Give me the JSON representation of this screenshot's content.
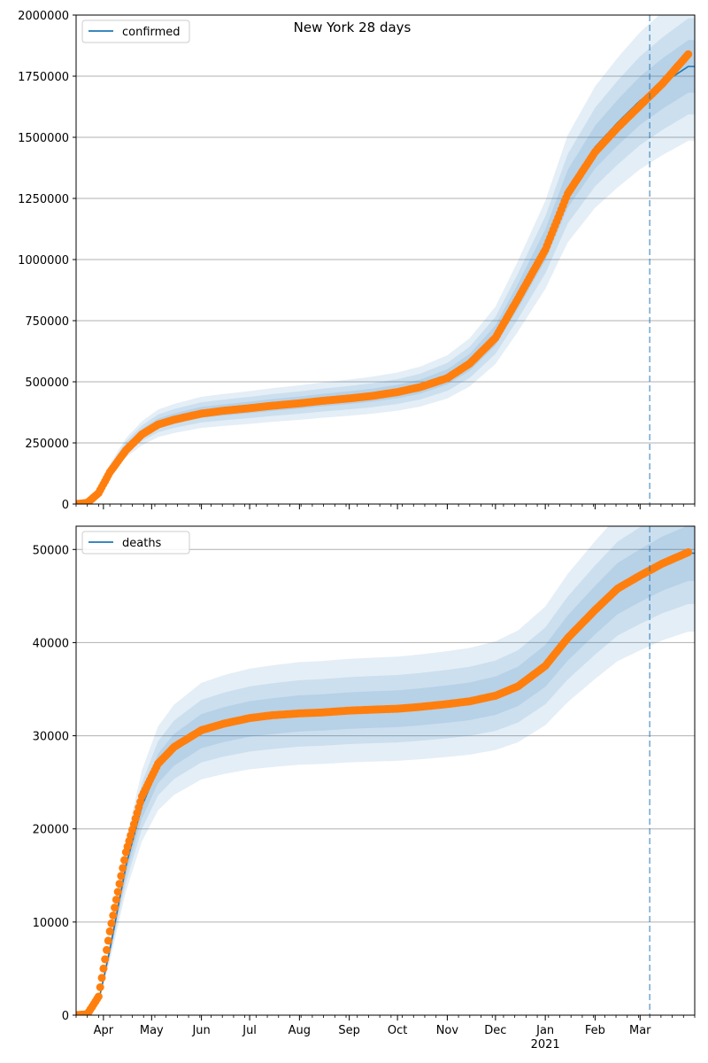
{
  "title": "New York 28 days",
  "colors": {
    "fit_line": "#1f77b4",
    "band": "#1f77b4",
    "observed": "#ff7f0e",
    "grid": "#b0b0b0",
    "forecast_marker": "#1f77b4"
  },
  "x_axis": {
    "month_labels": [
      "Apr",
      "May",
      "Jun",
      "Jul",
      "Aug",
      "Sep",
      "Oct",
      "Nov",
      "Dec",
      "Jan",
      "Feb",
      "Mar"
    ],
    "month_days": [
      17,
      47,
      78,
      108,
      139,
      170,
      200,
      231,
      261,
      292,
      323,
      351
    ],
    "year_label": "2021",
    "range_days": [
      0,
      385
    ],
    "forecast_start_day": 357,
    "date_origin": "2020-03-15"
  },
  "chart_data": [
    {
      "type": "line",
      "title": "New York 28 days",
      "legend": [
        "confirmed"
      ],
      "legend_position": "top-left",
      "grid": "horizontal",
      "ylim": [
        0,
        2000000
      ],
      "yticks": [
        0,
        250000,
        500000,
        750000,
        1000000,
        1250000,
        1500000,
        1750000,
        2000000
      ],
      "ytick_labels": [
        "0",
        "250000",
        "500000",
        "750000",
        "1000000",
        "1250000",
        "1500000",
        "1750000",
        "2000000"
      ],
      "xlabel": "",
      "ylabel": "",
      "forecast_marker_date": "2021-03-07",
      "series": [
        {
          "name": "confirmed",
          "kind": "fit",
          "x": [
            "2020-03-01",
            "2020-03-15",
            "2020-03-22",
            "2020-03-29",
            "2020-04-05",
            "2020-04-15",
            "2020-04-25",
            "2020-05-05",
            "2020-05-15",
            "2020-06-01",
            "2020-06-15",
            "2020-07-01",
            "2020-07-15",
            "2020-08-01",
            "2020-08-15",
            "2020-09-01",
            "2020-09-15",
            "2020-10-01",
            "2020-10-15",
            "2020-11-01",
            "2020-11-15",
            "2020-12-01",
            "2020-12-15",
            "2021-01-01",
            "2021-01-15",
            "2021-02-01",
            "2021-02-15",
            "2021-03-01",
            "2021-03-15",
            "2021-03-31"
          ],
          "y": [
            0,
            0,
            5000,
            45000,
            140000,
            230000,
            290000,
            330000,
            350000,
            375000,
            385000,
            395000,
            405000,
            415000,
            425000,
            435000,
            445000,
            460000,
            480000,
            520000,
            580000,
            690000,
            850000,
            1060000,
            1290000,
            1460000,
            1560000,
            1650000,
            1720000,
            1790000
          ],
          "band_halfwidth_ratio": [
            0.06,
            0.11,
            0.17
          ]
        },
        {
          "name": "observed",
          "kind": "points",
          "x": [
            "2020-03-01",
            "2020-03-15",
            "2020-03-22",
            "2020-03-29",
            "2020-04-05",
            "2020-04-15",
            "2020-04-25",
            "2020-05-05",
            "2020-05-15",
            "2020-06-01",
            "2020-06-15",
            "2020-07-01",
            "2020-07-15",
            "2020-08-01",
            "2020-08-15",
            "2020-09-01",
            "2020-09-15",
            "2020-10-01",
            "2020-10-15",
            "2020-11-01",
            "2020-11-15",
            "2020-12-01",
            "2020-12-15",
            "2021-01-01",
            "2021-01-15",
            "2021-02-01",
            "2021-02-15",
            "2021-03-01",
            "2021-03-15",
            "2021-03-31"
          ],
          "y": [
            0,
            0,
            5000,
            45000,
            130000,
            220000,
            285000,
            325000,
            345000,
            370000,
            382000,
            392000,
            402000,
            412000,
            422000,
            432000,
            442000,
            458000,
            478000,
            515000,
            575000,
            680000,
            840000,
            1040000,
            1270000,
            1440000,
            1540000,
            1630000,
            1720000,
            1840000
          ]
        }
      ]
    },
    {
      "type": "line",
      "title": "",
      "legend": [
        "deaths"
      ],
      "legend_position": "top-left",
      "grid": "horizontal",
      "ylim": [
        0,
        52500
      ],
      "yticks": [
        0,
        10000,
        20000,
        30000,
        40000,
        50000
      ],
      "ytick_labels": [
        "0",
        "10000",
        "20000",
        "30000",
        "40000",
        "50000"
      ],
      "xlabel": "",
      "ylabel": "",
      "forecast_marker_date": "2021-03-07",
      "series": [
        {
          "name": "deaths",
          "kind": "fit",
          "x": [
            "2020-03-01",
            "2020-03-15",
            "2020-03-22",
            "2020-03-29",
            "2020-04-05",
            "2020-04-15",
            "2020-04-25",
            "2020-05-05",
            "2020-05-15",
            "2020-06-01",
            "2020-06-15",
            "2020-07-01",
            "2020-07-15",
            "2020-08-01",
            "2020-08-15",
            "2020-09-01",
            "2020-09-15",
            "2020-10-01",
            "2020-10-15",
            "2020-11-01",
            "2020-11-15",
            "2020-12-01",
            "2020-12-15",
            "2021-01-01",
            "2021-01-15",
            "2021-02-01",
            "2021-02-15",
            "2021-03-01",
            "2021-03-15",
            "2021-03-31"
          ],
          "y": [
            0,
            0,
            100,
            1500,
            7000,
            16000,
            22500,
            26500,
            28500,
            30500,
            31200,
            31800,
            32100,
            32400,
            32500,
            32700,
            32800,
            32900,
            33100,
            33400,
            33700,
            34300,
            35300,
            37500,
            40500,
            43500,
            45800,
            47200,
            48500,
            49600
          ],
          "band_halfwidth_ratio": [
            0.06,
            0.11,
            0.17
          ]
        },
        {
          "name": "observed",
          "kind": "points",
          "x": [
            "2020-03-01",
            "2020-03-15",
            "2020-03-22",
            "2020-03-29",
            "2020-04-05",
            "2020-04-15",
            "2020-04-25",
            "2020-05-05",
            "2020-05-15",
            "2020-06-01",
            "2020-06-15",
            "2020-07-01",
            "2020-07-15",
            "2020-08-01",
            "2020-08-15",
            "2020-09-01",
            "2020-09-15",
            "2020-10-01",
            "2020-10-15",
            "2020-11-01",
            "2020-11-15",
            "2020-12-01",
            "2020-12-15",
            "2021-01-01",
            "2021-01-15",
            "2021-02-01",
            "2021-02-15",
            "2021-03-01",
            "2021-03-15",
            "2021-03-31"
          ],
          "y": [
            0,
            0,
            100,
            2000,
            9000,
            17500,
            23500,
            27000,
            28800,
            30600,
            31300,
            31900,
            32200,
            32400,
            32500,
            32700,
            32800,
            32900,
            33100,
            33400,
            33700,
            34300,
            35300,
            37500,
            40500,
            43500,
            45800,
            47200,
            48500,
            49700
          ]
        }
      ]
    }
  ]
}
